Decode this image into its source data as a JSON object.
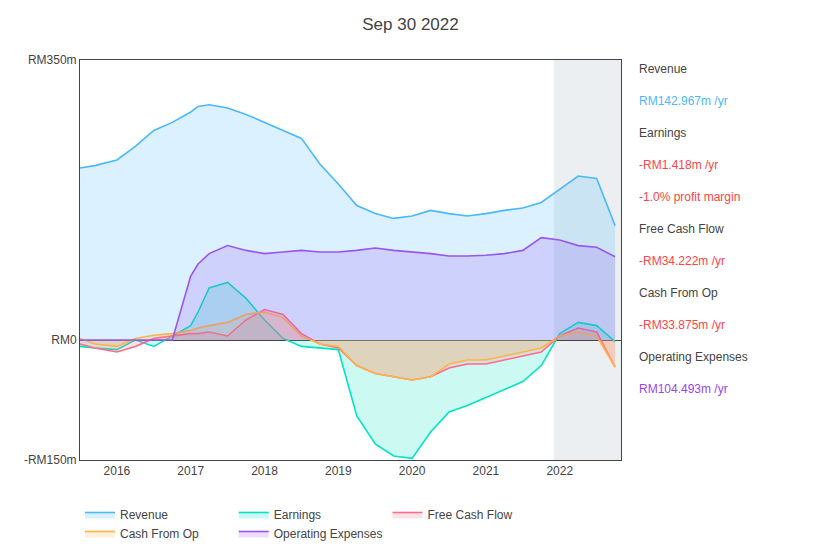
{
  "chart_data": {
    "type": "line",
    "title": "Sep 30 2022",
    "x": [
      2015.5,
      2015.7,
      2016.0,
      2016.25,
      2016.5,
      2016.75,
      2017.0,
      2017.1,
      2017.25,
      2017.5,
      2017.75,
      2018.0,
      2018.25,
      2018.5,
      2018.75,
      2019.0,
      2019.25,
      2019.5,
      2019.75,
      2020.0,
      2020.25,
      2020.5,
      2020.75,
      2021.0,
      2021.25,
      2021.5,
      2021.75,
      2022.0,
      2022.25,
      2022.5,
      2022.75
    ],
    "series": [
      {
        "name": "Revenue",
        "color": "#4ab8ff",
        "values": [
          215,
          218,
          225,
          242,
          262,
          272,
          285,
          292,
          294,
          290,
          282,
          272,
          262,
          252,
          220,
          195,
          168,
          158,
          152,
          155,
          162,
          158,
          155,
          158,
          162,
          165,
          172,
          188,
          205,
          202,
          143
        ]
      },
      {
        "name": "Earnings",
        "color": "#00e5c0",
        "values": [
          -8,
          -10,
          -12,
          0,
          -8,
          5,
          18,
          35,
          65,
          72,
          52,
          25,
          2,
          -8,
          -10,
          -12,
          -95,
          -130,
          -145,
          -148,
          -115,
          -90,
          -82,
          -72,
          -62,
          -52,
          -32,
          8,
          22,
          18,
          -2
        ]
      },
      {
        "name": "Free Cash Flow",
        "color": "#ff6b8a",
        "values": [
          -5,
          -10,
          -15,
          -8,
          2,
          5,
          8,
          8,
          10,
          5,
          25,
          38,
          32,
          8,
          -5,
          -10,
          -32,
          -42,
          -46,
          -50,
          -46,
          -35,
          -30,
          -30,
          -25,
          -20,
          -15,
          5,
          15,
          10,
          -34
        ]
      },
      {
        "name": "Cash From Op",
        "color": "#ffb347",
        "values": [
          2,
          -5,
          -8,
          2,
          6,
          8,
          12,
          15,
          18,
          22,
          32,
          35,
          28,
          5,
          -5,
          -8,
          -32,
          -42,
          -46,
          -50,
          -46,
          -30,
          -25,
          -25,
          -20,
          -15,
          -10,
          5,
          10,
          5,
          -34
        ]
      },
      {
        "name": "Operating Expenses",
        "color": "#9955ee",
        "values": [
          0,
          0,
          0,
          0,
          0,
          0,
          80,
          95,
          108,
          118,
          112,
          108,
          110,
          112,
          110,
          110,
          112,
          115,
          112,
          110,
          108,
          105,
          105,
          106,
          108,
          112,
          128,
          125,
          118,
          116,
          104
        ]
      }
    ],
    "xlim": [
      2015.5,
      2022.83
    ],
    "xticks": [
      2016,
      2017,
      2018,
      2019,
      2020,
      2021,
      2022
    ],
    "ylim": [
      -150,
      350
    ],
    "yticks": [
      {
        "value": 350,
        "label": "RM350m"
      },
      {
        "value": 0,
        "label": "RM0"
      },
      {
        "value": -150,
        "label": "-RM150m"
      }
    ],
    "highlight_x": [
      2021.92,
      2022.83
    ],
    "grid": false,
    "legend": "bottom",
    "annotations": [
      {
        "text": "Revenue"
      },
      {
        "text": "RM142.967m /yr",
        "color": "#4ab8ff"
      },
      {
        "text": "Earnings"
      },
      {
        "text": "-RM1.418m /yr",
        "color": "#ff4444"
      },
      {
        "text": "-1.0% profit margin",
        "color": "#ff4444"
      },
      {
        "text": "Free Cash Flow"
      },
      {
        "text": "-RM34.222m /yr",
        "color": "#ff4444"
      },
      {
        "text": "Cash From Op"
      },
      {
        "text": "-RM33.875m /yr",
        "color": "#ff4444"
      },
      {
        "text": "Operating Expenses"
      },
      {
        "text": "RM104.493m /yr",
        "color": "#9944ee"
      }
    ]
  }
}
